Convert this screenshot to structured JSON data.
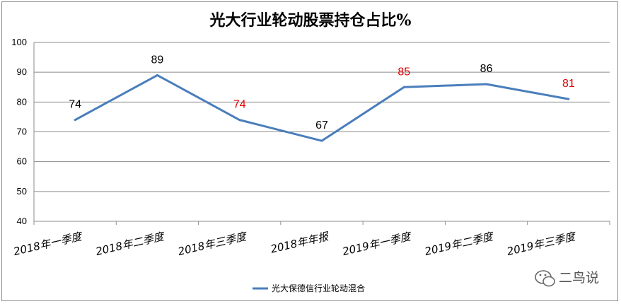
{
  "chart_data": {
    "type": "line",
    "title": "光大行业轮动股票持仓占比%",
    "categories": [
      "2018年一季度",
      "2018年二季度",
      "2018年三季度",
      "2018年年报",
      "2019年一季度",
      "2019年二季度",
      "2019年三季度"
    ],
    "series": [
      {
        "name": "光大保德信行业轮动混合",
        "values": [
          74,
          89,
          74,
          67,
          85,
          86,
          81
        ],
        "labels": [
          "74",
          "89",
          "74",
          "67",
          "85",
          "86",
          "81"
        ],
        "label_colors": [
          "#000000",
          "#000000",
          "#e00000",
          "#000000",
          "#e00000",
          "#000000",
          "#e00000"
        ],
        "color": "#4a7ebb"
      }
    ],
    "ylim": [
      40,
      100
    ],
    "yticks": [
      40,
      50,
      60,
      70,
      80,
      90,
      100
    ],
    "grid": true,
    "legend": "bottom"
  },
  "watermark": {
    "text": "二鸟说",
    "icon": "wechat-icon"
  }
}
